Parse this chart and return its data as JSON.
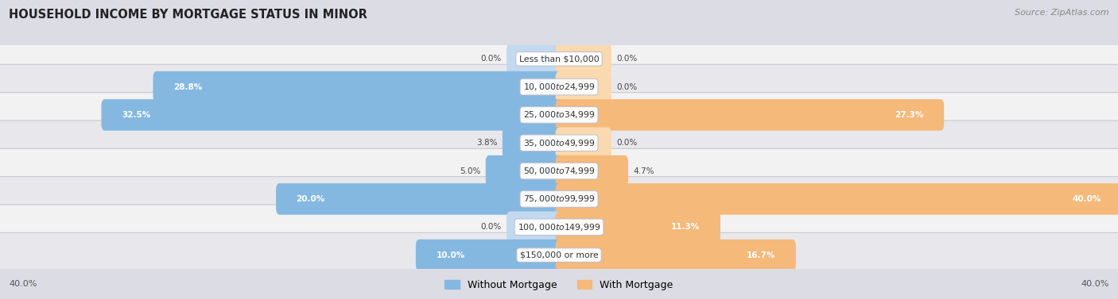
{
  "title": "HOUSEHOLD INCOME BY MORTGAGE STATUS IN MINOR",
  "source": "Source: ZipAtlas.com",
  "categories": [
    "Less than $10,000",
    "$10,000 to $24,999",
    "$25,000 to $34,999",
    "$35,000 to $49,999",
    "$50,000 to $74,999",
    "$75,000 to $99,999",
    "$100,000 to $149,999",
    "$150,000 or more"
  ],
  "without_mortgage": [
    0.0,
    28.8,
    32.5,
    3.8,
    5.0,
    20.0,
    0.0,
    10.0
  ],
  "with_mortgage": [
    0.0,
    0.0,
    27.3,
    0.0,
    4.7,
    40.0,
    11.3,
    16.7
  ],
  "max_val": 40.0,
  "color_without": "#85b8e0",
  "color_with": "#f5b97a",
  "color_without_light": "#c2d9ef",
  "color_with_light": "#fad9b0",
  "row_colors": [
    "#f2f2f2",
    "#e8e8ec"
  ],
  "pill_bg": "#e0e0e6",
  "axis_label_left": "40.0%",
  "axis_label_right": "40.0%",
  "legend_without": "Without Mortgage",
  "legend_with": "With Mortgage",
  "inside_label_threshold": 8.0
}
